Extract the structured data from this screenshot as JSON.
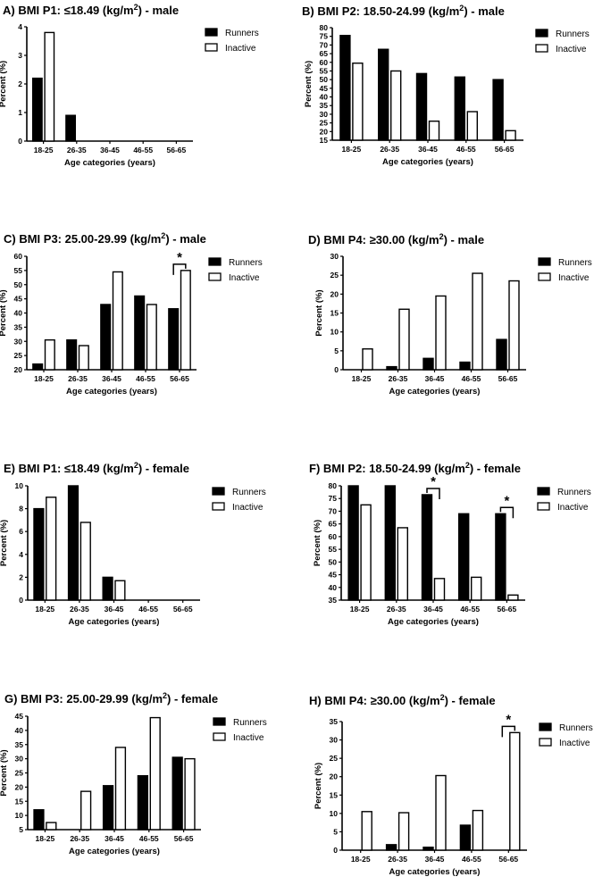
{
  "chart_data": [
    {
      "type": "bar",
      "title_prefix": "A) BMI P1: ≤18.49 (kg/m",
      "title_sup": "2",
      "title_suffix": ") - male",
      "xlabel": "Age categories (years)",
      "ylabel": "Percent (%)",
      "categories": [
        "18-25",
        "26-35",
        "36-45",
        "46-55",
        "56-65"
      ],
      "ylim": [
        0,
        4
      ],
      "yticks": [
        0,
        1,
        2,
        3,
        4
      ],
      "series": [
        {
          "name": "Runners",
          "values": [
            2.2,
            0.9,
            0,
            0,
            0
          ]
        },
        {
          "name": "Inactive",
          "values": [
            3.8,
            0,
            0,
            0,
            0
          ]
        }
      ],
      "significance": []
    },
    {
      "type": "bar",
      "title_prefix": "B) BMI P2: 18.50-24.99 (kg/m",
      "title_sup": "2",
      "title_suffix": ") - male",
      "xlabel": "Age categories (years)",
      "ylabel": "Percent (%)",
      "categories": [
        "18-25",
        "26-35",
        "36-45",
        "46-55",
        "56-65"
      ],
      "ylim": [
        15,
        80
      ],
      "yticks": [
        15,
        20,
        25,
        30,
        35,
        40,
        45,
        50,
        55,
        60,
        65,
        70,
        75,
        80
      ],
      "series": [
        {
          "name": "Runners",
          "values": [
            75.5,
            67.5,
            53.5,
            51.5,
            50
          ]
        },
        {
          "name": "Inactive",
          "values": [
            59.5,
            55,
            26,
            31.5,
            20.5
          ]
        }
      ],
      "significance": []
    },
    {
      "type": "bar",
      "title_prefix": "C) BMI P3: 25.00-29.99 (kg/m",
      "title_sup": "2",
      "title_suffix": ") - male",
      "xlabel": "Age categories (years)",
      "ylabel": "Percent (%)",
      "categories": [
        "18-25",
        "26-35",
        "36-45",
        "46-55",
        "56-65"
      ],
      "ylim": [
        20,
        60
      ],
      "yticks": [
        20,
        25,
        30,
        35,
        40,
        45,
        50,
        55,
        60
      ],
      "series": [
        {
          "name": "Runners",
          "values": [
            22,
            30.5,
            43,
            46,
            41.5
          ]
        },
        {
          "name": "Inactive",
          "values": [
            30.5,
            28.5,
            54.5,
            43,
            55
          ]
        }
      ],
      "significance": [
        {
          "category": "56-65",
          "label": "*"
        }
      ]
    },
    {
      "type": "bar",
      "title_prefix": "D) BMI P4: ≥30.00 (kg/m",
      "title_sup": "2",
      "title_suffix": ") - male",
      "xlabel": "Age categories (years)",
      "ylabel": "Percent (%)",
      "categories": [
        "18-25",
        "26-35",
        "36-45",
        "46-55",
        "56-65"
      ],
      "ylim": [
        0,
        30
      ],
      "yticks": [
        0,
        5,
        10,
        15,
        20,
        25,
        30
      ],
      "series": [
        {
          "name": "Runners",
          "values": [
            0,
            0.8,
            3,
            2,
            8
          ]
        },
        {
          "name": "Inactive",
          "values": [
            5.5,
            16,
            19.5,
            25.5,
            23.5
          ]
        }
      ],
      "significance": []
    },
    {
      "type": "bar",
      "title_prefix": "E) BMI P1: ≤18.49 (kg/m",
      "title_sup": "2",
      "title_suffix": ") - female",
      "xlabel": "Age categories (years)",
      "ylabel": "Percent (%)",
      "categories": [
        "18-25",
        "26-35",
        "36-45",
        "46-55",
        "56-65"
      ],
      "ylim": [
        0,
        10
      ],
      "yticks": [
        0,
        2,
        4,
        6,
        8,
        10
      ],
      "series": [
        {
          "name": "Runners",
          "values": [
            8,
            10,
            2,
            0,
            0
          ]
        },
        {
          "name": "Inactive",
          "values": [
            9,
            6.8,
            1.7,
            0,
            0
          ]
        }
      ],
      "significance": []
    },
    {
      "type": "bar",
      "title_prefix": "F) BMI P2: 18.50-24.99 (kg/m",
      "title_sup": "2",
      "title_suffix": ") - female",
      "xlabel": "Age categories (years)",
      "ylabel": "Percent (%)",
      "categories": [
        "18-25",
        "26-35",
        "36-45",
        "46-55",
        "56-65"
      ],
      "ylim": [
        35,
        80
      ],
      "yticks": [
        35,
        40,
        45,
        50,
        55,
        60,
        65,
        70,
        75,
        80
      ],
      "series": [
        {
          "name": "Runners",
          "values": [
            80,
            80,
            76.5,
            69,
            69
          ]
        },
        {
          "name": "Inactive",
          "values": [
            72.5,
            63.5,
            43.5,
            44,
            37
          ]
        }
      ],
      "significance": [
        {
          "category": "36-45",
          "label": "*"
        },
        {
          "category": "56-65",
          "label": "*"
        }
      ]
    },
    {
      "type": "bar",
      "title_prefix": "G) BMI P3: 25.00-29.99 (kg/m",
      "title_sup": "2",
      "title_suffix": ") - female",
      "xlabel": "Age categories (years)",
      "ylabel": "Percent (%)",
      "categories": [
        "18-25",
        "26-35",
        "36-45",
        "46-55",
        "56-65"
      ],
      "ylim": [
        5,
        45
      ],
      "yticks": [
        5,
        10,
        15,
        20,
        25,
        30,
        35,
        40,
        45
      ],
      "series": [
        {
          "name": "Runners",
          "values": [
            12,
            5,
            20.5,
            24,
            30.5
          ]
        },
        {
          "name": "Inactive",
          "values": [
            7.5,
            18.5,
            34,
            44.5,
            30
          ]
        }
      ],
      "significance": []
    },
    {
      "type": "bar",
      "title_prefix": "H) BMI P4: ≥30.00 (kg/m",
      "title_sup": "2",
      "title_suffix": ") - female",
      "xlabel": "Age categories (years)",
      "ylabel": "Percent (%)",
      "categories": [
        "18-25",
        "26-35",
        "36-45",
        "46-55",
        "56-65"
      ],
      "ylim": [
        0,
        35
      ],
      "yticks": [
        0,
        5,
        10,
        15,
        20,
        25,
        30,
        35
      ],
      "series": [
        {
          "name": "Runners",
          "values": [
            0,
            1.5,
            0.8,
            6.8,
            0
          ]
        },
        {
          "name": "Inactive",
          "values": [
            10.5,
            10.2,
            20.3,
            10.8,
            32
          ]
        }
      ],
      "significance": [
        {
          "category": "56-65",
          "label": "*"
        }
      ]
    }
  ]
}
